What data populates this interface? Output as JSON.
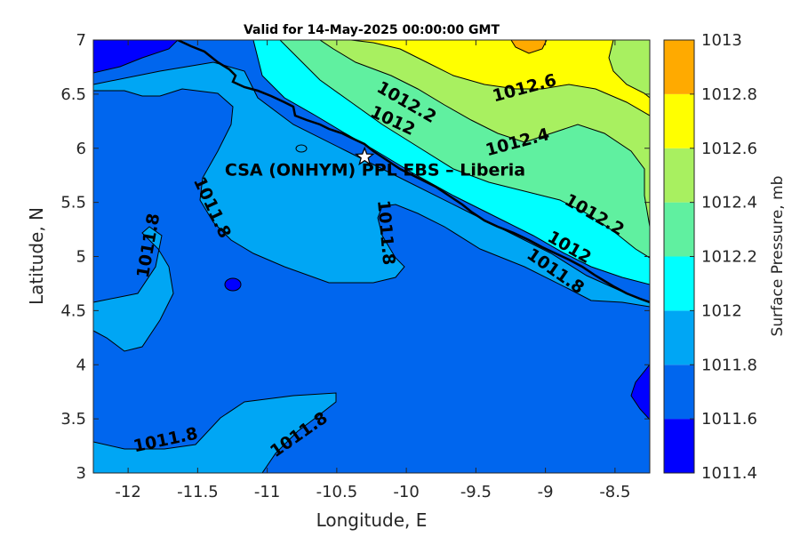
{
  "chart_data": {
    "type": "contour",
    "title": "Valid for 14-May-2025 00:00:00 GMT",
    "xlabel": "Longitude, E",
    "ylabel": "Latitude, N",
    "xlim": [
      -12.25,
      -8.25
    ],
    "ylim": [
      3,
      7
    ],
    "xticks": [
      "-12",
      "-11.5",
      "-11",
      "-10.5",
      "-10",
      "-9.5",
      "-9",
      "-8.5"
    ],
    "yticks": [
      "3",
      "3.5",
      "4",
      "4.5",
      "5",
      "5.5",
      "6",
      "6.5",
      "7"
    ],
    "colorbar": {
      "label": "Surface Pressure, mb",
      "levels": [
        "1011.4",
        "1011.6",
        "1011.8",
        "1012",
        "1012.2",
        "1012.4",
        "1012.6",
        "1012.8",
        "1013"
      ],
      "colors": [
        "#0000ff",
        "#0066ee",
        "#00a6f4",
        "#00ffff",
        "#60f0a0",
        "#a8f060",
        "#ffff00",
        "#ffaa00",
        "#ff5500"
      ]
    },
    "contour_labels": [
      {
        "text": "1012.2",
        "x": -10.0,
        "y": 6.42
      },
      {
        "text": "1012",
        "x": -10.1,
        "y": 6.25
      },
      {
        "text": "1012.6",
        "x": -9.15,
        "y": 6.55
      },
      {
        "text": "1012.4",
        "x": -9.2,
        "y": 6.05
      },
      {
        "text": "1011.8",
        "x": -11.4,
        "y": 5.45
      },
      {
        "text": "1011.8",
        "x": -11.85,
        "y": 5.1
      },
      {
        "text": "1011.8",
        "x": -10.15,
        "y": 5.22
      },
      {
        "text": "1012.2",
        "x": -8.65,
        "y": 5.38
      },
      {
        "text": "1012",
        "x": -8.83,
        "y": 5.08
      },
      {
        "text": "1011.8",
        "x": -8.93,
        "y": 4.86
      },
      {
        "text": "1011.8",
        "x": -11.73,
        "y": 3.3
      },
      {
        "text": "1011.8",
        "x": -10.77,
        "y": 3.35
      }
    ],
    "marker": {
      "label": "CSA (ONHYM) PPL EBS  – Liberia",
      "lon": -10.3,
      "lat": 5.92,
      "symbol": "star"
    }
  }
}
